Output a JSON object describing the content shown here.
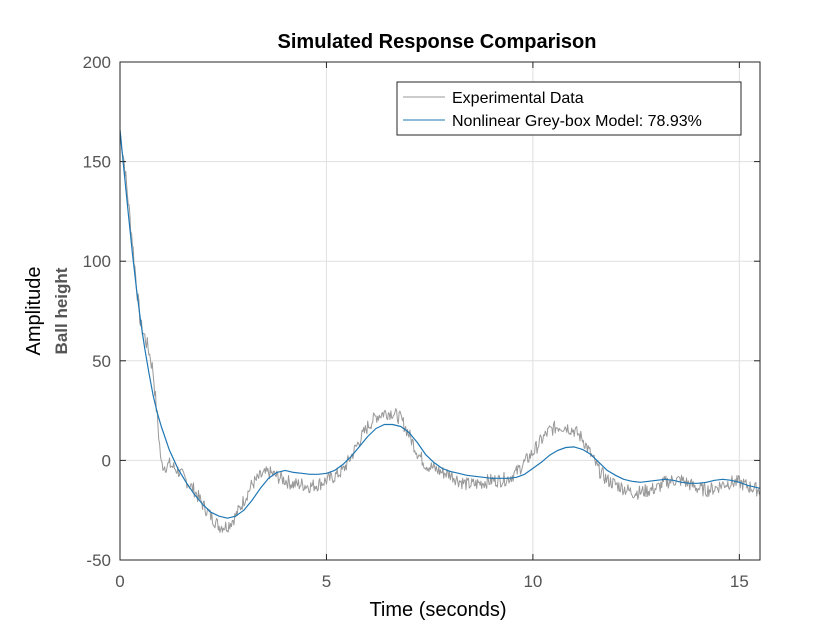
{
  "chart_data": {
    "type": "line",
    "title": "Simulated Response Comparison",
    "xlabel": "Time (seconds)",
    "ylabel": "Amplitude",
    "ylabel_secondary": "Ball height",
    "xlim": [
      0,
      15.5
    ],
    "ylim": [
      -50,
      200
    ],
    "xticks": [
      0,
      5,
      10,
      15
    ],
    "yticks": [
      -50,
      0,
      50,
      100,
      150,
      200
    ],
    "grid": true,
    "legend_position": "top-right",
    "series": [
      {
        "name": "Experimental Data",
        "color": "#999999",
        "noisy": true,
        "x": [
          0,
          0.1,
          0.2,
          0.3,
          0.4,
          0.5,
          0.6,
          0.7,
          0.8,
          0.9,
          1.0,
          1.1,
          1.2,
          1.4,
          1.6,
          1.8,
          2.0,
          2.2,
          2.4,
          2.6,
          2.8,
          3.0,
          3.2,
          3.4,
          3.6,
          3.8,
          4.0,
          4.2,
          4.4,
          4.6,
          4.8,
          5.0,
          5.2,
          5.4,
          5.6,
          5.8,
          6.0,
          6.2,
          6.4,
          6.6,
          6.8,
          7.0,
          7.2,
          7.4,
          7.6,
          7.8,
          8.0,
          8.2,
          8.4,
          8.6,
          8.8,
          9.0,
          9.2,
          9.4,
          9.6,
          9.8,
          10.0,
          10.2,
          10.4,
          10.6,
          10.8,
          11.0,
          11.2,
          11.4,
          11.6,
          11.8,
          12.0,
          12.2,
          12.4,
          12.6,
          12.8,
          13.0,
          13.2,
          13.4,
          13.6,
          13.8,
          14.0,
          14.2,
          14.4,
          14.6,
          14.8,
          15.0,
          15.2,
          15.5
        ],
        "y": [
          165,
          150,
          130,
          110,
          88,
          68,
          62,
          55,
          45,
          22,
          -2,
          -3,
          -2,
          -5,
          -10,
          -15,
          -22,
          -28,
          -33,
          -33,
          -28,
          -20,
          -12,
          -8,
          -6,
          -8,
          -10,
          -12,
          -12,
          -13,
          -12,
          -10,
          -8,
          -5,
          2,
          10,
          17,
          22,
          24,
          24,
          21,
          13,
          4,
          -2,
          -4,
          -6,
          -7,
          -10,
          -12,
          -12,
          -11,
          -10,
          -10,
          -9,
          -6,
          -1,
          4,
          10,
          15,
          17,
          17,
          15,
          11,
          3,
          -5,
          -10,
          -12,
          -14,
          -16,
          -16,
          -15,
          -14,
          -11,
          -10,
          -10,
          -12,
          -14,
          -15,
          -14,
          -12,
          -11,
          -11,
          -13,
          -15
        ]
      },
      {
        "name": "Nonlinear Grey-box Model: 78.93%",
        "color": "#1f77b4",
        "noisy": false,
        "x": [
          0,
          0.1,
          0.2,
          0.3,
          0.4,
          0.5,
          0.6,
          0.7,
          0.8,
          0.9,
          1.0,
          1.2,
          1.4,
          1.6,
          1.8,
          2.0,
          2.2,
          2.4,
          2.6,
          2.8,
          3.0,
          3.2,
          3.4,
          3.6,
          3.8,
          4.0,
          4.2,
          4.4,
          4.6,
          4.8,
          5.0,
          5.2,
          5.4,
          5.6,
          5.8,
          6.0,
          6.2,
          6.4,
          6.6,
          6.8,
          7.0,
          7.2,
          7.4,
          7.6,
          7.8,
          8.0,
          8.2,
          8.4,
          8.6,
          8.8,
          9.0,
          9.2,
          9.4,
          9.6,
          9.8,
          10.0,
          10.2,
          10.4,
          10.6,
          10.8,
          11.0,
          11.2,
          11.4,
          11.6,
          11.8,
          12.0,
          12.2,
          12.4,
          12.6,
          12.8,
          13.0,
          13.2,
          13.4,
          13.6,
          13.8,
          14.0,
          14.2,
          14.4,
          14.6,
          14.8,
          15.0,
          15.2,
          15.5
        ],
        "y": [
          166,
          145,
          124,
          104,
          86,
          70,
          56,
          44,
          33,
          24,
          17,
          5,
          -4,
          -11,
          -17,
          -22,
          -26,
          -28,
          -29,
          -28,
          -25,
          -20,
          -14,
          -9,
          -6,
          -5,
          -6,
          -6.5,
          -7,
          -7,
          -6.5,
          -5,
          -2,
          2,
          7,
          12,
          16,
          18,
          18,
          17,
          14,
          9,
          3,
          -1,
          -4,
          -5.5,
          -6.5,
          -7.5,
          -8,
          -8.5,
          -9,
          -9,
          -9,
          -8.5,
          -7,
          -4,
          -1,
          2.5,
          5,
          6.5,
          6.8,
          5.5,
          3,
          -1,
          -5,
          -7.5,
          -9.5,
          -10.5,
          -11,
          -10.5,
          -10,
          -9.5,
          -10,
          -11,
          -11.5,
          -11.5,
          -11,
          -10,
          -9.5,
          -10,
          -11,
          -12.5,
          -14
        ]
      }
    ]
  }
}
